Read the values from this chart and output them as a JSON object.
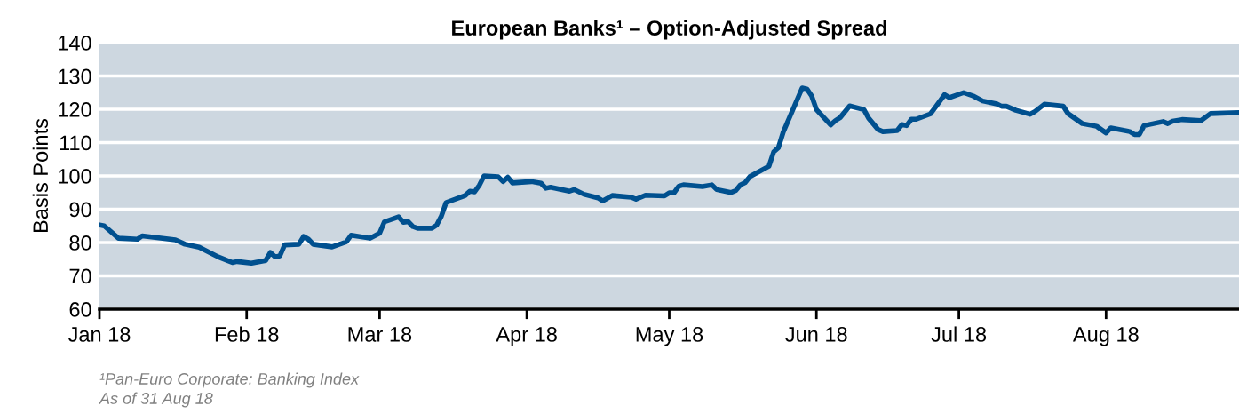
{
  "chart_data": {
    "type": "line",
    "title": "European Banks¹ – Option-Adjusted Spread",
    "ylabel": "Basis Points",
    "x": [
      "2018-01-01",
      "2018-01-02",
      "2018-01-05",
      "2018-01-09",
      "2018-01-10",
      "2018-01-17",
      "2018-01-19",
      "2018-01-22",
      "2018-01-26",
      "2018-01-29",
      "2018-01-30",
      "2018-02-02",
      "2018-02-05",
      "2018-02-06",
      "2018-02-07",
      "2018-02-08",
      "2018-02-09",
      "2018-02-12",
      "2018-02-13",
      "2018-02-14",
      "2018-02-15",
      "2018-02-19",
      "2018-02-22",
      "2018-02-23",
      "2018-02-27",
      "2018-03-01",
      "2018-03-02",
      "2018-03-05",
      "2018-03-06",
      "2018-03-07",
      "2018-03-08",
      "2018-03-09",
      "2018-03-12",
      "2018-03-13",
      "2018-03-14",
      "2018-03-15",
      "2018-03-19",
      "2018-03-20",
      "2018-03-21",
      "2018-03-22",
      "2018-03-23",
      "2018-03-26",
      "2018-03-27",
      "2018-03-28",
      "2018-03-29",
      "2018-04-02",
      "2018-04-04",
      "2018-04-05",
      "2018-04-06",
      "2018-04-10",
      "2018-04-11",
      "2018-04-13",
      "2018-04-16",
      "2018-04-17",
      "2018-04-19",
      "2018-04-23",
      "2018-04-24",
      "2018-04-26",
      "2018-04-30",
      "2018-05-01",
      "2018-05-02",
      "2018-05-03",
      "2018-05-04",
      "2018-05-08",
      "2018-05-10",
      "2018-05-11",
      "2018-05-14",
      "2018-05-15",
      "2018-05-16",
      "2018-05-17",
      "2018-05-18",
      "2018-05-22",
      "2018-05-23",
      "2018-05-24",
      "2018-05-25",
      "2018-05-29",
      "2018-05-30",
      "2018-05-31",
      "2018-06-01",
      "2018-06-04",
      "2018-06-05",
      "2018-06-06",
      "2018-06-08",
      "2018-06-11",
      "2018-06-12",
      "2018-06-14",
      "2018-06-15",
      "2018-06-18",
      "2018-06-19",
      "2018-06-20",
      "2018-06-21",
      "2018-06-22",
      "2018-06-25",
      "2018-06-26",
      "2018-06-28",
      "2018-06-29",
      "2018-07-02",
      "2018-07-04",
      "2018-07-06",
      "2018-07-09",
      "2018-07-10",
      "2018-07-11",
      "2018-07-13",
      "2018-07-16",
      "2018-07-17",
      "2018-07-19",
      "2018-07-23",
      "2018-07-24",
      "2018-07-27",
      "2018-07-30",
      "2018-08-01",
      "2018-08-02",
      "2018-08-06",
      "2018-08-07",
      "2018-08-08",
      "2018-08-09",
      "2018-08-13",
      "2018-08-14",
      "2018-08-15",
      "2018-08-17",
      "2018-08-21",
      "2018-08-23",
      "2018-08-29"
    ],
    "series": [
      {
        "color": "#00508f",
        "values": [
          85.3,
          85,
          81.3,
          81,
          82,
          80.8,
          79.5,
          78.6,
          75.7,
          74,
          74.3,
          73.8,
          74.6,
          77,
          75.7,
          76,
          79.3,
          79.5,
          81.8,
          81,
          79.5,
          78.7,
          80.2,
          82.2,
          81.3,
          82.8,
          86.2,
          87.7,
          86.1,
          86.3,
          84.8,
          84.3,
          84.3,
          85.2,
          87.9,
          92,
          94.1,
          95.4,
          95.2,
          97.2,
          100,
          99.7,
          98.3,
          99.6,
          97.9,
          98.3,
          97.8,
          96.3,
          96.6,
          95.4,
          95.9,
          94.5,
          93.4,
          92.5,
          94.1,
          93.6,
          93,
          94.2,
          94,
          94.9,
          94.9,
          96.9,
          97.3,
          96.8,
          97.3,
          95.9,
          95,
          95.6,
          97.3,
          98,
          99.8,
          102.9,
          107.2,
          108.5,
          113.1,
          126.4,
          126.1,
          124,
          119.9,
          115.3,
          116.6,
          117.5,
          121,
          119.9,
          117.3,
          113.9,
          113.3,
          113.6,
          115.4,
          115.1,
          117,
          117,
          118.6,
          120.5,
          124.4,
          123.5,
          125,
          124,
          122.5,
          121.6,
          120.9,
          120.9,
          119.7,
          118.5,
          119.3,
          121.5,
          120.9,
          118.7,
          115.7,
          114.9,
          112.9,
          114.4,
          113.3,
          112.4,
          112.4,
          115.1,
          116.3,
          115.7,
          116.4,
          116.9,
          116.6,
          118.7,
          119
        ]
      }
    ],
    "xlim": [
      "2018-01-01",
      "2018-08-29"
    ],
    "xticks": [
      {
        "value": "2018-01-01",
        "label": "Jan 18"
      },
      {
        "value": "2018-02-01",
        "label": "Feb 18"
      },
      {
        "value": "2018-03-01",
        "label": "Mar 18"
      },
      {
        "value": "2018-04-01",
        "label": "Apr 18"
      },
      {
        "value": "2018-05-01",
        "label": "May 18"
      },
      {
        "value": "2018-06-01",
        "label": "Jun 18"
      },
      {
        "value": "2018-07-01",
        "label": "Jul 18"
      },
      {
        "value": "2018-08-01",
        "label": "Aug 18"
      }
    ],
    "ylim": [
      60,
      140
    ],
    "yticks": [
      60,
      70,
      80,
      90,
      100,
      110,
      120,
      130,
      140
    ],
    "grid": "y",
    "line_style": "solid",
    "annotations": [
      "¹Pan-Euro Corporate: Banking Index",
      "As of 31 Aug 18"
    ]
  }
}
